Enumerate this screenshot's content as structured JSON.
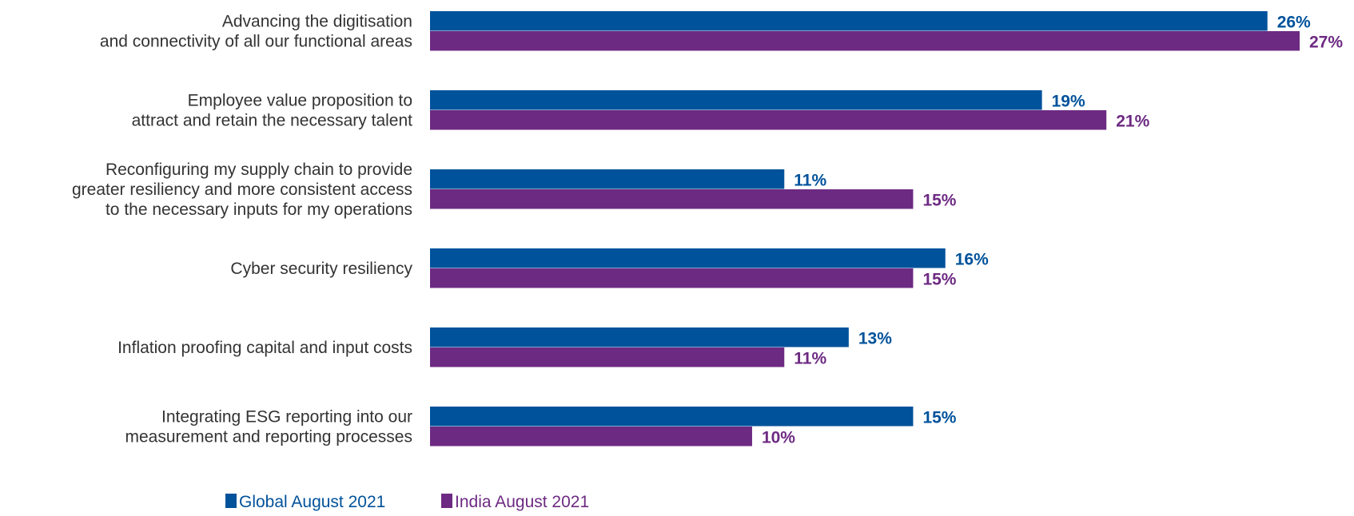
{
  "chart_data": {
    "type": "bar",
    "orientation": "horizontal",
    "categories": [
      [
        "Advancing the digitisation",
        "and connectivity of all our functional areas"
      ],
      [
        "Employee value proposition to",
        "attract and retain the necessary talent"
      ],
      [
        "Reconfiguring my supply chain to provide",
        "greater resiliency and more consistent access",
        "to the necessary inputs for my operations"
      ],
      [
        "Cyber security resiliency"
      ],
      [
        "Inflation proofing capital and input costs"
      ],
      [
        "Integrating ESG reporting into our",
        "measurement and reporting processes"
      ]
    ],
    "series": [
      {
        "name": "Global August 2021",
        "color": "#00529B",
        "values": [
          26,
          19,
          11,
          16,
          13,
          15
        ],
        "labels": [
          "26%",
          "19%",
          "11%",
          "16%",
          "13%",
          "15%"
        ]
      },
      {
        "name": "India August 2021",
        "color": "#6D2A82",
        "values": [
          27,
          21,
          15,
          15,
          11,
          10
        ],
        "labels": [
          "27%",
          "21%",
          "15%",
          "15%",
          "11%",
          "10%"
        ]
      }
    ],
    "xlim": [
      0,
      27
    ],
    "legend_position": "bottom-left",
    "grid": false
  }
}
